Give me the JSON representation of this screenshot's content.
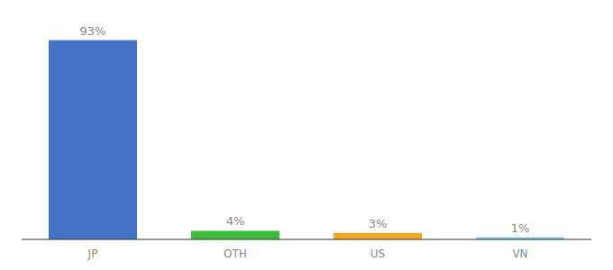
{
  "chart_data": {
    "type": "bar",
    "categories": [
      "JP",
      "OTH",
      "US",
      "VN"
    ],
    "values": [
      93,
      4,
      3,
      1
    ],
    "value_labels": [
      "93%",
      "4%",
      "3%",
      "1%"
    ],
    "colors": [
      "#4472c4",
      "#3dbb3d",
      "#f5a623",
      "#7ec8e3"
    ],
    "ylim": [
      0,
      100
    ],
    "data_labels": true,
    "tick_labels": "x",
    "grid": false
  }
}
